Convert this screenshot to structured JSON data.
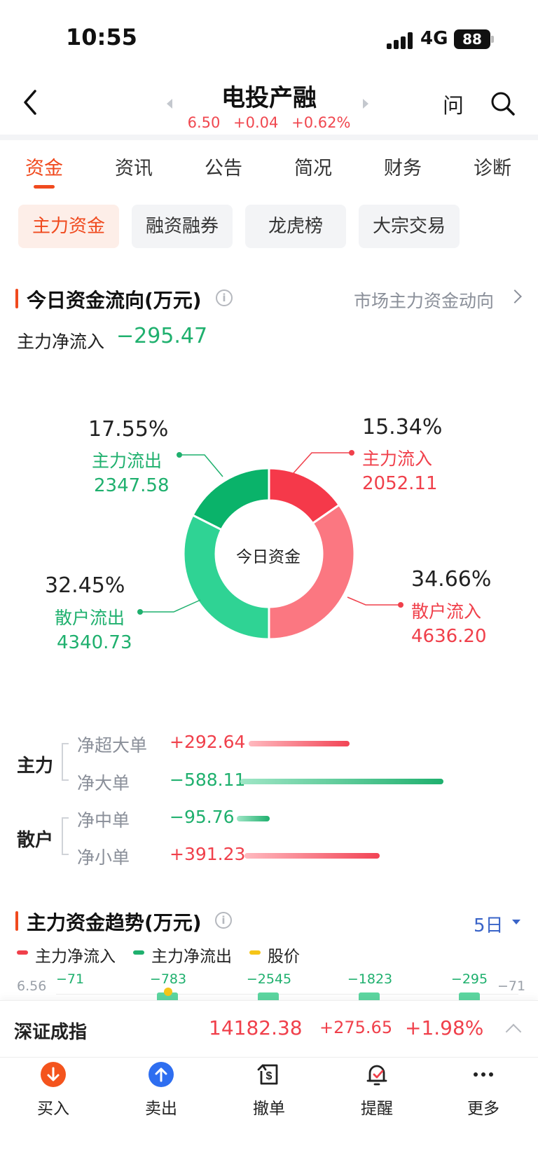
{
  "status_bar": {
    "time": "10:55",
    "network": "4G",
    "battery": "88"
  },
  "header": {
    "title": "电投产融",
    "price": "6.50",
    "change": "+0.04",
    "change_pct": "+0.62%",
    "ask_label": "问"
  },
  "tabs": [
    {
      "label": "资金",
      "active": true
    },
    {
      "label": "资讯",
      "active": false
    },
    {
      "label": "公告",
      "active": false
    },
    {
      "label": "简况",
      "active": false
    },
    {
      "label": "财务",
      "active": false
    },
    {
      "label": "诊断",
      "active": false
    }
  ],
  "sub_tabs": [
    {
      "label": "主力资金",
      "active": true
    },
    {
      "label": "融资融券",
      "active": false
    },
    {
      "label": "龙虎榜",
      "active": false
    },
    {
      "label": "大宗交易",
      "active": false
    }
  ],
  "flow_section": {
    "title": "今日资金流向(万元)",
    "link": "市场主力资金动向",
    "net_in_label": "主力净流入",
    "net_in_value": "−295.47",
    "center_label": "今日资金",
    "segments": [
      {
        "label": "主力流入",
        "pct": "15.34%",
        "value": "2052.11",
        "color": "#f5394a"
      },
      {
        "label": "散户流入",
        "pct": "34.66%",
        "value": "4636.20",
        "color": "#fb7781"
      },
      {
        "label": "散户流出",
        "pct": "32.45%",
        "value": "4340.73",
        "color": "#2fd394"
      },
      {
        "label": "主力流出",
        "pct": "17.55%",
        "value": "2347.58",
        "color": "#0ab36a"
      }
    ]
  },
  "breakdown": {
    "groups": [
      {
        "label": "主力",
        "rows": [
          {
            "label": "净超大单",
            "value": "+292.64",
            "num": 292.64
          },
          {
            "label": "净大单",
            "value": "−588.11",
            "num": -588.11
          }
        ]
      },
      {
        "label": "散户",
        "rows": [
          {
            "label": "净中单",
            "value": "−95.76",
            "num": -95.76
          },
          {
            "label": "净小单",
            "value": "+391.23",
            "num": 391.23
          }
        ]
      }
    ]
  },
  "trend_section": {
    "title": "主力资金趋势(万元)",
    "period": "5日",
    "legend": [
      {
        "label": "主力净流入",
        "color": "#f0404b"
      },
      {
        "label": "主力净流出",
        "color": "#1fb06e"
      },
      {
        "label": "股价",
        "color": "#f5c518"
      }
    ],
    "axis_left": "6.56",
    "axis_top_left": "−71",
    "axis_right": "−71",
    "values": [
      "−783",
      "−2545",
      "−1823",
      "−295"
    ]
  },
  "index_bar": {
    "name": "深证成指",
    "value": "14182.38",
    "change": "+275.65",
    "change_pct": "+1.98%"
  },
  "toolbar": [
    {
      "label": "买入",
      "icon": "buy-icon"
    },
    {
      "label": "卖出",
      "icon": "sell-icon"
    },
    {
      "label": "撤单",
      "icon": "cancel-order-icon"
    },
    {
      "label": "提醒",
      "icon": "alert-bell-icon"
    },
    {
      "label": "更多",
      "icon": "more-icon"
    }
  ]
}
